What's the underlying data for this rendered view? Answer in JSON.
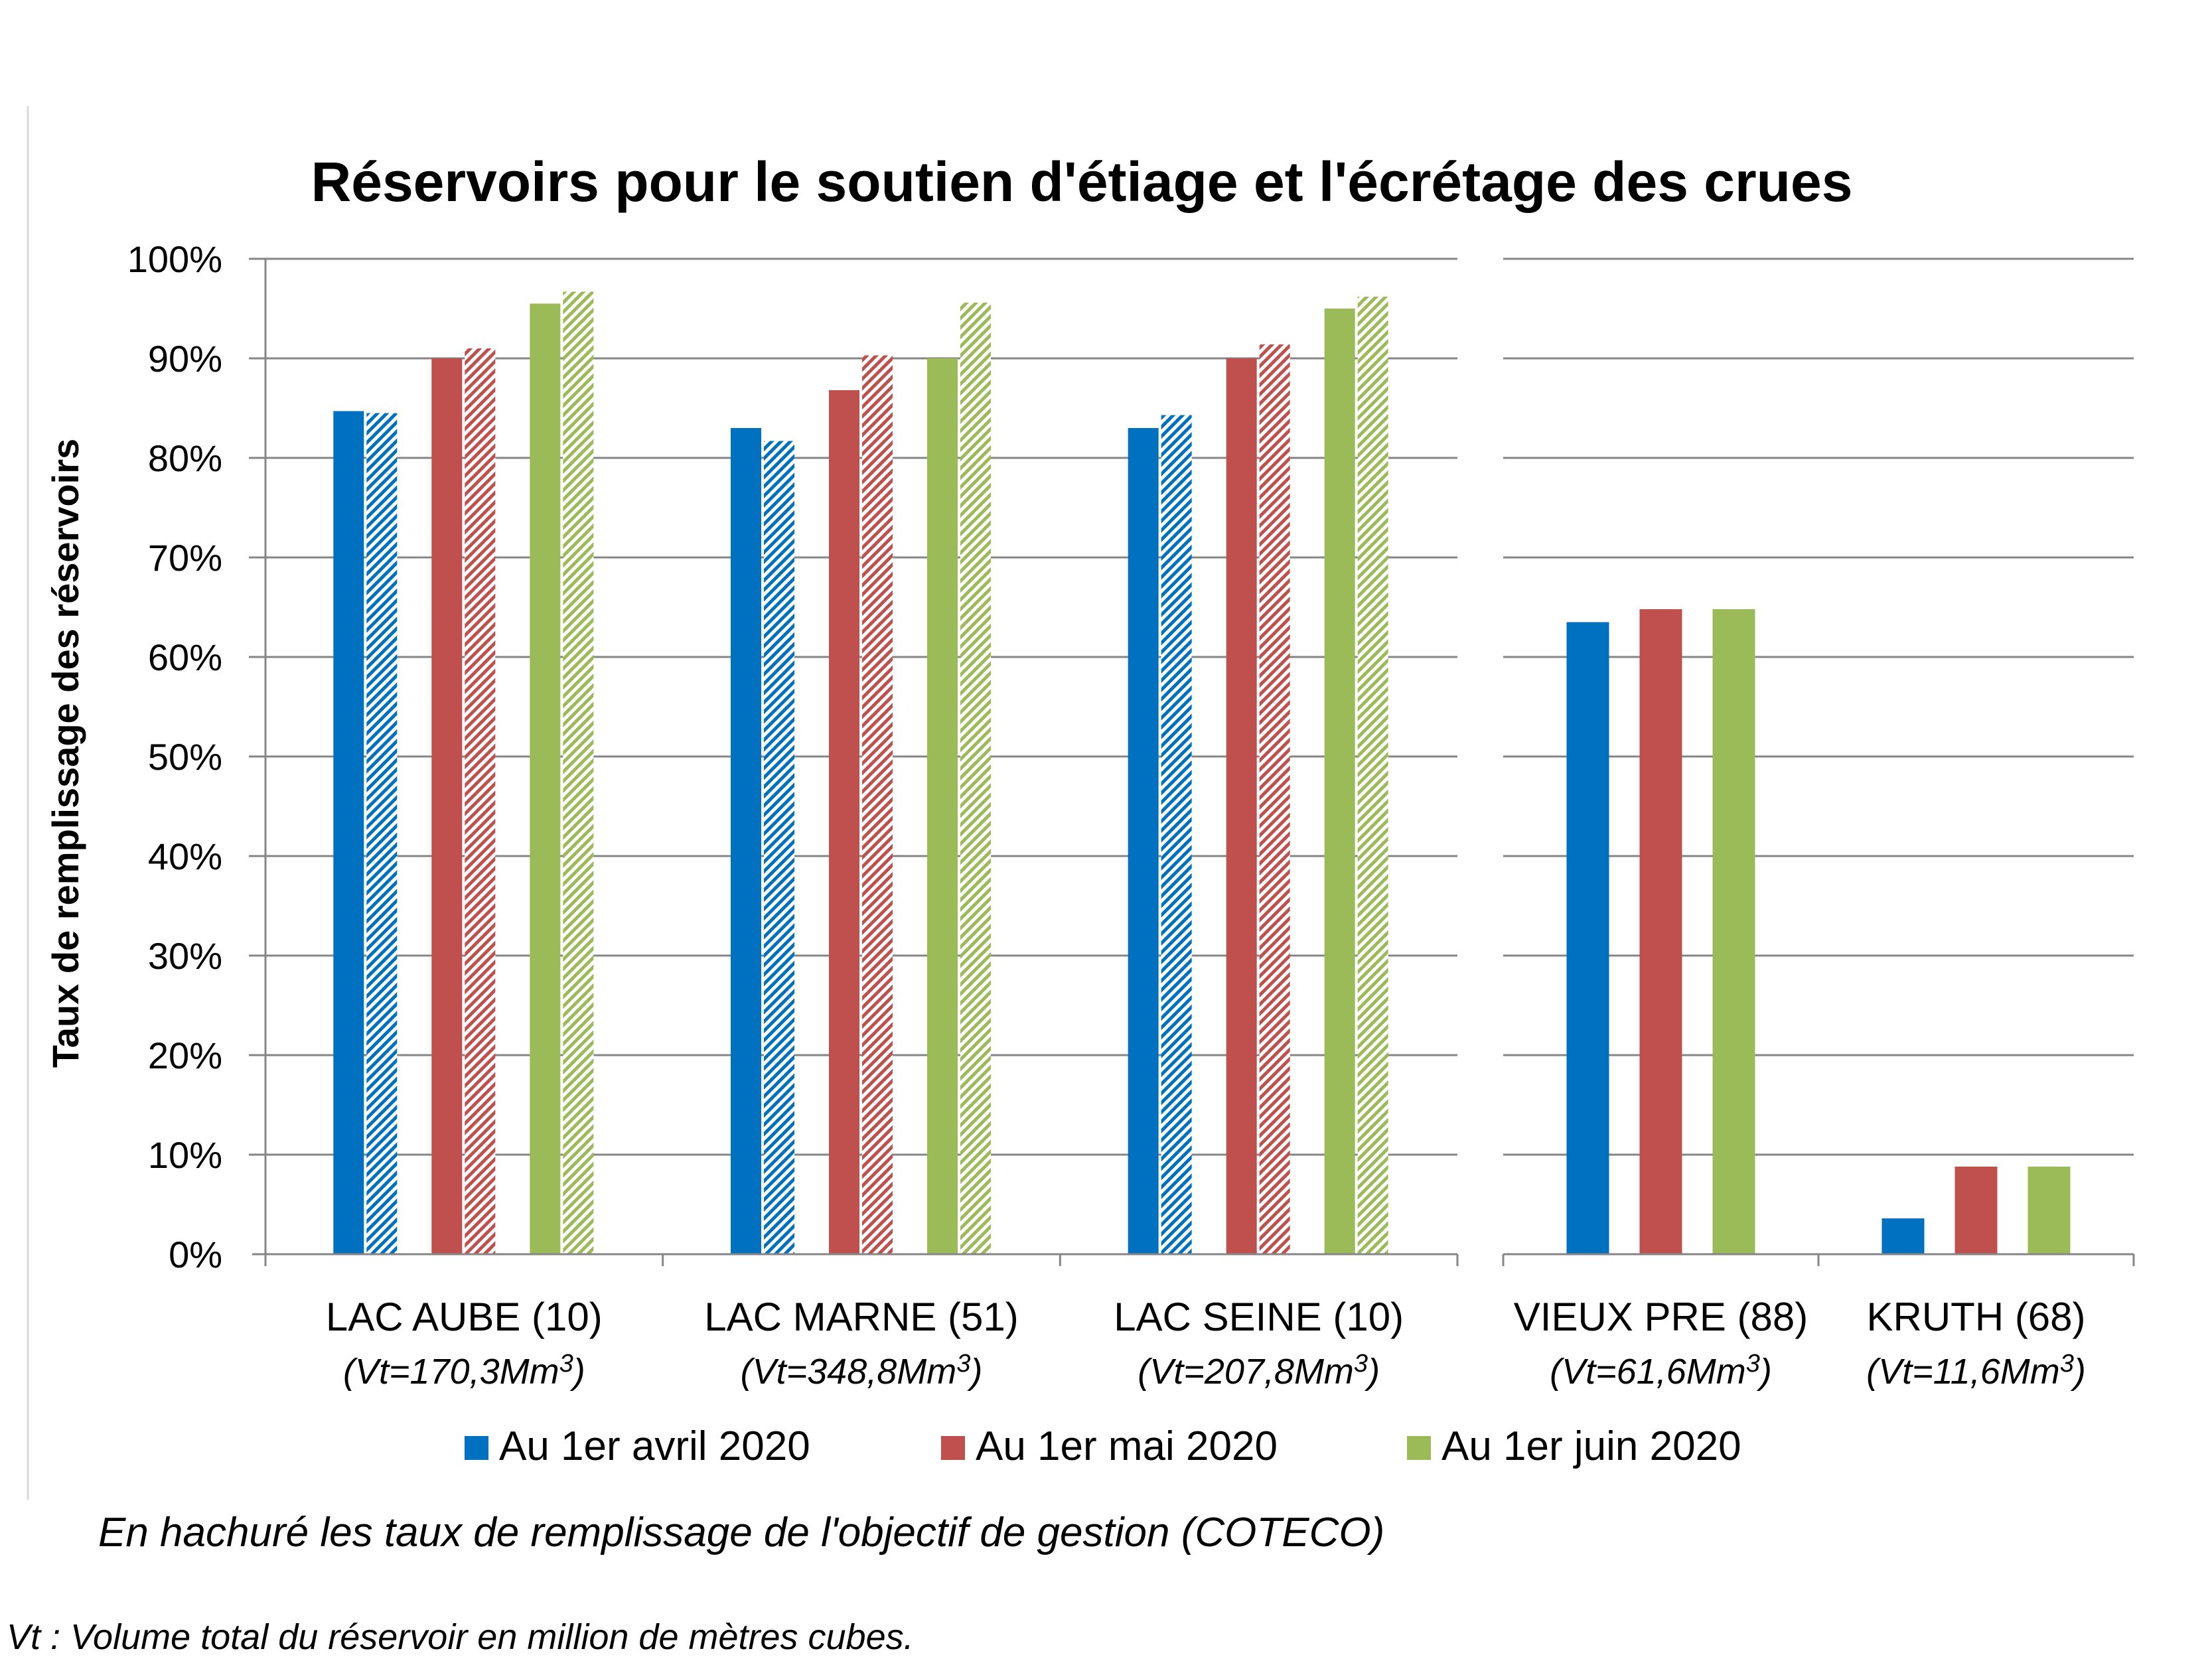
{
  "chart_data": {
    "type": "bar",
    "title": "Réservoirs pour le soutien d'étiage et l'écrétage des crues",
    "ylabel": "Taux de remplissage des réservoirs",
    "xlabel": "",
    "ylim": [
      0,
      100
    ],
    "y_ticks": [
      "0%",
      "10%",
      "20%",
      "30%",
      "40%",
      "50%",
      "60%",
      "70%",
      "80%",
      "90%",
      "100%"
    ],
    "grid": true,
    "legend_position": "bottom",
    "groups": [
      {
        "categories": [
          "LAC AUBE (10)",
          "LAC MARNE (51)",
          "LAC SEINE (10)"
        ],
        "volumes": [
          "(Vt=170,3Mm",
          "(Vt=348,8Mm",
          "(Vt=207,8Mm"
        ],
        "series": [
          {
            "name": "Au 1er avril 2020",
            "color": "#0070C0",
            "values": [
              84.7,
              83.0,
              83.0
            ],
            "objective": [
              84.5,
              81.7,
              84.3
            ]
          },
          {
            "name": "Au 1er mai 2020",
            "color": "#C0504D",
            "values": [
              90.0,
              86.8,
              90.0
            ],
            "objective": [
              91.0,
              90.3,
              91.4
            ]
          },
          {
            "name": "Au 1er juin 2020",
            "color": "#9BBB59",
            "values": [
              95.5,
              90.0,
              95.0
            ],
            "objective": [
              96.7,
              95.6,
              96.2
            ]
          }
        ]
      },
      {
        "categories": [
          "VIEUX PRE (88)",
          "KRUTH (68)"
        ],
        "volumes": [
          "(Vt=61,6Mm",
          "(Vt=11,6Mm"
        ],
        "series": [
          {
            "name": "Au 1er avril 2020",
            "color": "#0070C0",
            "values": [
              63.5,
              3.6
            ]
          },
          {
            "name": "Au 1er mai 2020",
            "color": "#C0504D",
            "values": [
              64.8,
              8.8
            ]
          },
          {
            "name": "Au 1er juin 2020",
            "color": "#9BBB59",
            "values": [
              64.8,
              8.8
            ]
          }
        ]
      }
    ],
    "volume_superscript": "3",
    "volume_close": ")",
    "legend": [
      {
        "label": "Au 1er avril 2020",
        "color": "#0070C0"
      },
      {
        "label": "Au 1er mai 2020",
        "color": "#C0504D"
      },
      {
        "label": "Au 1er juin 2020",
        "color": "#9BBB59"
      }
    ],
    "note_hatched": "En hachuré les taux de remplissage de l'objectif de gestion (COTECO)",
    "footnote": "Vt : Volume total du réservoir en million de mètres cubes."
  }
}
